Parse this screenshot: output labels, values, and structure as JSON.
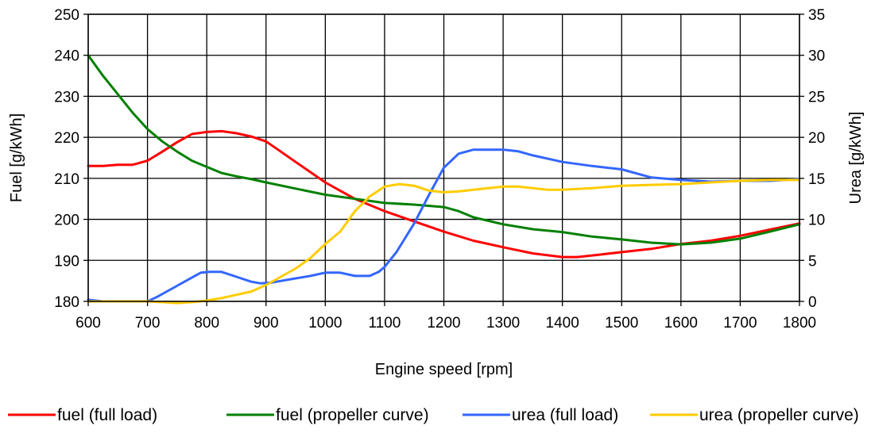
{
  "chart_data": {
    "type": "line",
    "xlabel": "Engine speed [rpm]",
    "ylabel_left": "Fuel [g/kWh]",
    "ylabel_right": "Urea [g/kWh]",
    "xlim": [
      600,
      1800
    ],
    "ylim_left": [
      180,
      250
    ],
    "ylim_right": [
      0,
      35
    ],
    "x_ticks": [
      600,
      700,
      800,
      900,
      1000,
      1100,
      1200,
      1300,
      1400,
      1500,
      1600,
      1700,
      1800
    ],
    "y_ticks_left": [
      180,
      190,
      200,
      210,
      220,
      230,
      240,
      250
    ],
    "y_ticks_right": [
      0,
      5,
      10,
      15,
      20,
      25,
      30,
      35
    ],
    "grid": true,
    "legend_position": "bottom",
    "series": [
      {
        "name": "fuel (full load)",
        "axis": "left",
        "color": "#ff0000",
        "points": [
          [
            600,
            213
          ],
          [
            625,
            213
          ],
          [
            650,
            213.3
          ],
          [
            675,
            213.3
          ],
          [
            700,
            214.3
          ],
          [
            725,
            216.5
          ],
          [
            750,
            218.8
          ],
          [
            775,
            220.8
          ],
          [
            800,
            221.3
          ],
          [
            825,
            221.5
          ],
          [
            850,
            221
          ],
          [
            875,
            220.2
          ],
          [
            900,
            219
          ],
          [
            925,
            216.5
          ],
          [
            950,
            214
          ],
          [
            975,
            211.5
          ],
          [
            1000,
            209
          ],
          [
            1025,
            207
          ],
          [
            1050,
            205
          ],
          [
            1075,
            203.5
          ],
          [
            1100,
            202
          ],
          [
            1150,
            199.5
          ],
          [
            1200,
            197
          ],
          [
            1250,
            194.8
          ],
          [
            1300,
            193.2
          ],
          [
            1350,
            191.7
          ],
          [
            1400,
            190.8
          ],
          [
            1425,
            190.8
          ],
          [
            1450,
            191.2
          ],
          [
            1500,
            192
          ],
          [
            1550,
            192.8
          ],
          [
            1600,
            194
          ],
          [
            1650,
            194.8
          ],
          [
            1700,
            196
          ],
          [
            1750,
            197.5
          ],
          [
            1800,
            199
          ]
        ]
      },
      {
        "name": "fuel (propeller curve)",
        "axis": "left",
        "color": "#008000",
        "points": [
          [
            600,
            240
          ],
          [
            625,
            235
          ],
          [
            650,
            230.5
          ],
          [
            675,
            226
          ],
          [
            700,
            222
          ],
          [
            725,
            219
          ],
          [
            750,
            216.5
          ],
          [
            775,
            214.3
          ],
          [
            800,
            212.8
          ],
          [
            825,
            211.3
          ],
          [
            850,
            210.5
          ],
          [
            875,
            209.8
          ],
          [
            900,
            209
          ],
          [
            950,
            207.5
          ],
          [
            1000,
            206
          ],
          [
            1050,
            205
          ],
          [
            1100,
            204
          ],
          [
            1150,
            203.6
          ],
          [
            1200,
            203
          ],
          [
            1225,
            202
          ],
          [
            1250,
            200.5
          ],
          [
            1300,
            198.8
          ],
          [
            1350,
            197.6
          ],
          [
            1400,
            196.9
          ],
          [
            1450,
            195.8
          ],
          [
            1500,
            195.1
          ],
          [
            1550,
            194.3
          ],
          [
            1600,
            193.9
          ],
          [
            1650,
            194.3
          ],
          [
            1700,
            195.3
          ],
          [
            1750,
            197
          ],
          [
            1800,
            198.8
          ]
        ]
      },
      {
        "name": "urea (full load)",
        "axis": "right",
        "color": "#3366ff",
        "points": [
          [
            600,
            0.2
          ],
          [
            625,
            0
          ],
          [
            650,
            0
          ],
          [
            675,
            0
          ],
          [
            700,
            0
          ],
          [
            715,
            0.5
          ],
          [
            740,
            1.5
          ],
          [
            765,
            2.5
          ],
          [
            790,
            3.5
          ],
          [
            805,
            3.6
          ],
          [
            825,
            3.6
          ],
          [
            850,
            3
          ],
          [
            875,
            2.4
          ],
          [
            890,
            2.2
          ],
          [
            910,
            2.3
          ],
          [
            950,
            2.8
          ],
          [
            975,
            3.1
          ],
          [
            1000,
            3.5
          ],
          [
            1025,
            3.5
          ],
          [
            1050,
            3.1
          ],
          [
            1075,
            3.1
          ],
          [
            1090,
            3.6
          ],
          [
            1100,
            4.2
          ],
          [
            1120,
            6
          ],
          [
            1150,
            9.5
          ],
          [
            1175,
            13
          ],
          [
            1200,
            16.3
          ],
          [
            1225,
            18
          ],
          [
            1250,
            18.5
          ],
          [
            1275,
            18.5
          ],
          [
            1300,
            18.5
          ],
          [
            1325,
            18.3
          ],
          [
            1350,
            17.8
          ],
          [
            1400,
            17
          ],
          [
            1450,
            16.5
          ],
          [
            1500,
            16.1
          ],
          [
            1550,
            15.1
          ],
          [
            1600,
            14.8
          ],
          [
            1650,
            14.6
          ],
          [
            1700,
            14.7
          ],
          [
            1750,
            14.7
          ],
          [
            1800,
            14.9
          ]
        ]
      },
      {
        "name": "urea (propeller curve)",
        "axis": "right",
        "color": "#ffcc00",
        "points": [
          [
            600,
            0
          ],
          [
            650,
            0
          ],
          [
            700,
            0
          ],
          [
            725,
            -0.1
          ],
          [
            750,
            -0.2
          ],
          [
            775,
            -0.1
          ],
          [
            800,
            0.1
          ],
          [
            825,
            0.4
          ],
          [
            850,
            0.8
          ],
          [
            875,
            1.2
          ],
          [
            900,
            2
          ],
          [
            925,
            3
          ],
          [
            950,
            4
          ],
          [
            975,
            5.3
          ],
          [
            1000,
            7
          ],
          [
            1025,
            8.5
          ],
          [
            1050,
            11
          ],
          [
            1075,
            12.8
          ],
          [
            1100,
            14
          ],
          [
            1125,
            14.3
          ],
          [
            1150,
            14.1
          ],
          [
            1175,
            13.5
          ],
          [
            1200,
            13.3
          ],
          [
            1225,
            13.4
          ],
          [
            1250,
            13.6
          ],
          [
            1275,
            13.8
          ],
          [
            1300,
            14
          ],
          [
            1325,
            14
          ],
          [
            1350,
            13.8
          ],
          [
            1375,
            13.6
          ],
          [
            1400,
            13.6
          ],
          [
            1450,
            13.8
          ],
          [
            1500,
            14.1
          ],
          [
            1550,
            14.2
          ],
          [
            1600,
            14.3
          ],
          [
            1650,
            14.5
          ],
          [
            1700,
            14.7
          ],
          [
            1750,
            14.8
          ],
          [
            1800,
            14.8
          ]
        ]
      }
    ]
  }
}
